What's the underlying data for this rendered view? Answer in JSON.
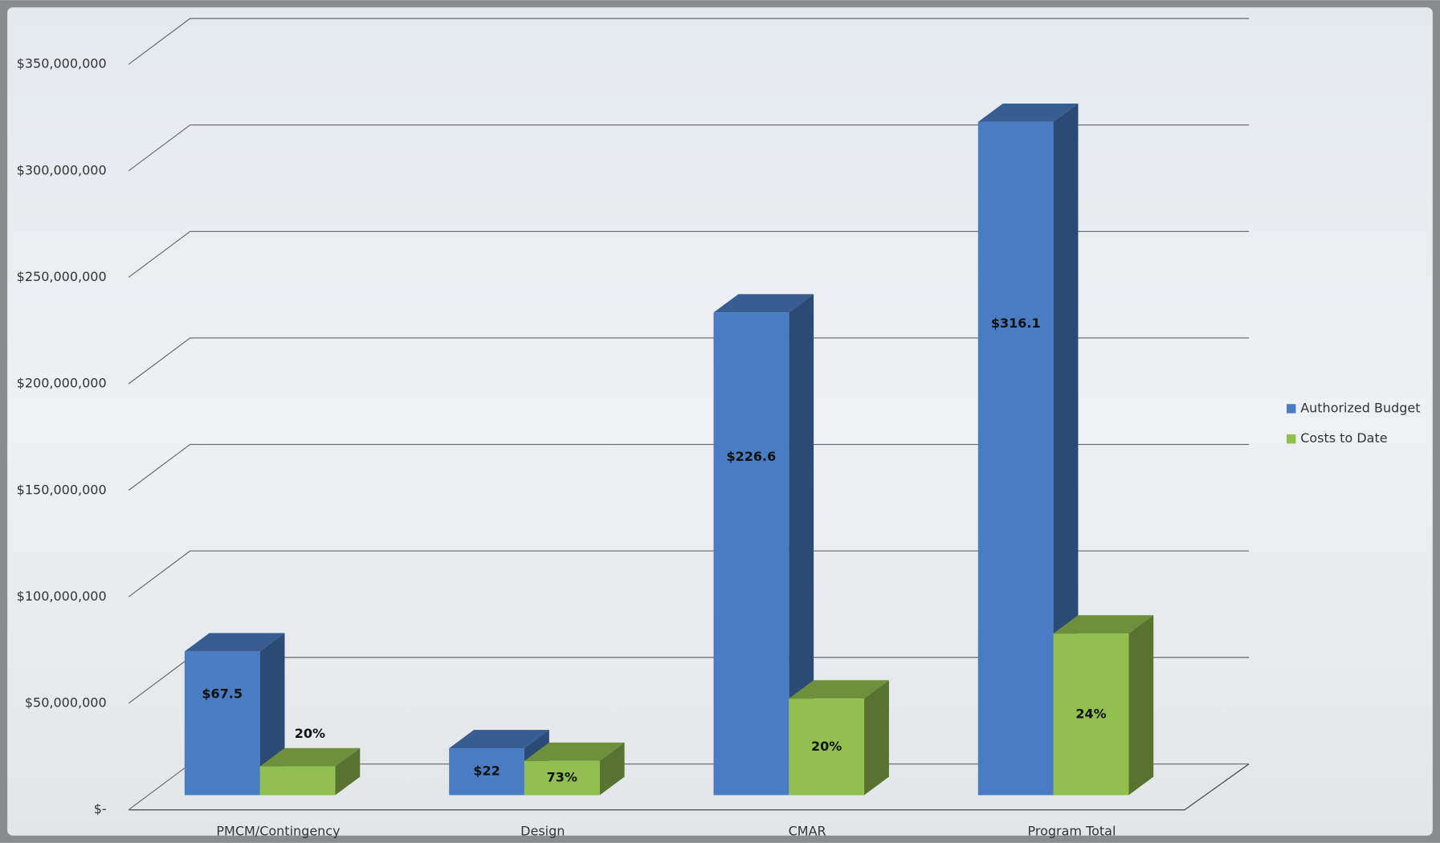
{
  "chart_data": {
    "type": "bar3d",
    "categories": [
      "PMCM/Contingency",
      "Design",
      "CMAR",
      "Program Total"
    ],
    "series": [
      {
        "name": "Authorized Budget",
        "color": "#4a7cc4",
        "values": [
          67500000,
          22000000,
          226600000,
          316100000
        ],
        "value_labels": [
          "$67.5",
          "$22",
          "$226.6",
          "$316.1"
        ]
      },
      {
        "name": "Costs to Date",
        "color": "#92c050",
        "values": [
          13500000,
          16060000,
          45320000,
          75860000
        ],
        "percent_labels": [
          "20%",
          "73%",
          "20%",
          "24%"
        ]
      }
    ],
    "ylim": [
      0,
      350000000
    ],
    "yticks": [
      {
        "value": 0,
        "label": "$-"
      },
      {
        "value": 50000000,
        "label": "$50,000,000"
      },
      {
        "value": 100000000,
        "label": "$100,000,000"
      },
      {
        "value": 150000000,
        "label": "$150,000,000"
      },
      {
        "value": 200000000,
        "label": "$200,000,000"
      },
      {
        "value": 250000000,
        "label": "$250,000,000"
      },
      {
        "value": 300000000,
        "label": "$300,000,000"
      },
      {
        "value": 350000000,
        "label": "$350,000,000"
      }
    ],
    "grid": true,
    "legend": "right"
  }
}
